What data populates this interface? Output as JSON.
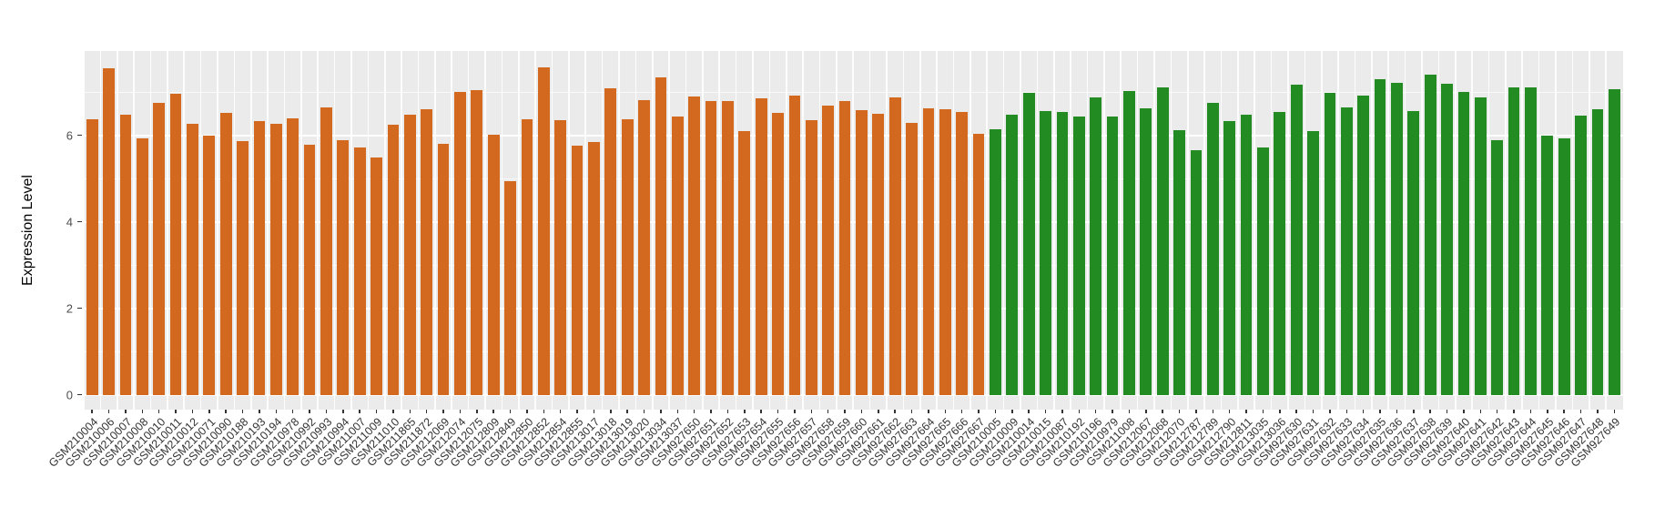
{
  "chart_data": {
    "type": "bar",
    "title": "",
    "xlabel": "",
    "ylabel": "Expression Level",
    "ylim": [
      0,
      7.95
    ],
    "yticks": [
      0,
      2,
      4,
      6
    ],
    "yticks_minor": [
      1,
      3,
      5,
      7
    ],
    "grid": true,
    "legend_position": "none",
    "panel_bg": "#EBEBEB",
    "grid_color": "#FFFFFF",
    "series": [
      {
        "name": "orange",
        "color": "#D2691E",
        "categories": [
          "GSM210004",
          "GSM210006",
          "GSM210007",
          "GSM210008",
          "GSM210010",
          "GSM210011",
          "GSM210012",
          "GSM210071",
          "GSM210090",
          "GSM210188",
          "GSM210193",
          "GSM210194",
          "GSM210978",
          "GSM210992",
          "GSM210993",
          "GSM210994",
          "GSM211007",
          "GSM211009",
          "GSM211010",
          "GSM211865",
          "GSM211872",
          "GSM212069",
          "GSM212074",
          "GSM212075",
          "GSM212809",
          "GSM212849",
          "GSM212850",
          "GSM212852",
          "GSM212854",
          "GSM212855",
          "GSM213017",
          "GSM213018",
          "GSM213019",
          "GSM213020",
          "GSM213034",
          "GSM213037",
          "GSM927650",
          "GSM927651",
          "GSM927652",
          "GSM927653",
          "GSM927654",
          "GSM927655",
          "GSM927656",
          "GSM927657",
          "GSM927658",
          "GSM927659",
          "GSM927660",
          "GSM927661",
          "GSM927662",
          "GSM927663",
          "GSM927664",
          "GSM927665",
          "GSM927666",
          "GSM927667"
        ],
        "values": [
          6.37,
          7.55,
          6.48,
          5.93,
          6.75,
          6.96,
          6.27,
          6.0,
          6.52,
          5.86,
          6.33,
          6.26,
          6.38,
          5.77,
          6.64,
          5.89,
          5.71,
          5.48,
          6.24,
          6.47,
          6.6,
          5.81,
          6.99,
          7.04,
          6.02,
          4.93,
          6.37,
          7.56,
          6.34,
          5.76,
          5.84,
          7.09,
          6.37,
          6.81,
          7.34,
          6.43,
          6.89,
          6.8,
          6.79,
          6.1,
          6.85,
          6.52,
          6.92,
          6.34,
          6.68,
          6.79,
          6.58,
          6.49,
          6.87,
          6.28,
          6.63,
          6.6,
          6.53,
          6.04
        ]
      },
      {
        "name": "green",
        "color": "#228B22",
        "categories": [
          "GSM210005",
          "GSM210009",
          "GSM210014",
          "GSM210015",
          "GSM210087",
          "GSM210192",
          "GSM210196",
          "GSM210979",
          "GSM211008",
          "GSM212067",
          "GSM212068",
          "GSM212070",
          "GSM212787",
          "GSM212789",
          "GSM212790",
          "GSM212811",
          "GSM213035",
          "GSM213036",
          "GSM927630",
          "GSM927631",
          "GSM927632",
          "GSM927633",
          "GSM927634",
          "GSM927635",
          "GSM927636",
          "GSM927637",
          "GSM927638",
          "GSM927639",
          "GSM927640",
          "GSM927641",
          "GSM927642",
          "GSM927643",
          "GSM927644",
          "GSM927645",
          "GSM927646",
          "GSM927647",
          "GSM927648",
          "GSM927649"
        ],
        "values": [
          6.13,
          6.48,
          6.97,
          6.56,
          6.54,
          6.44,
          6.88,
          6.43,
          7.02,
          6.62,
          7.11,
          6.12,
          5.65,
          6.74,
          6.33,
          6.47,
          5.72,
          6.53,
          7.17,
          6.09,
          6.97,
          6.65,
          6.92,
          7.29,
          7.21,
          6.56,
          7.41,
          7.2,
          7.0,
          6.88,
          5.89,
          7.11,
          7.11,
          5.98,
          5.93,
          6.46,
          6.6,
          7.07
        ]
      }
    ]
  },
  "axis_style": {
    "tick_color": "#333333",
    "y_text_color": "#4D4D4D",
    "x_text_color": "#333333"
  }
}
